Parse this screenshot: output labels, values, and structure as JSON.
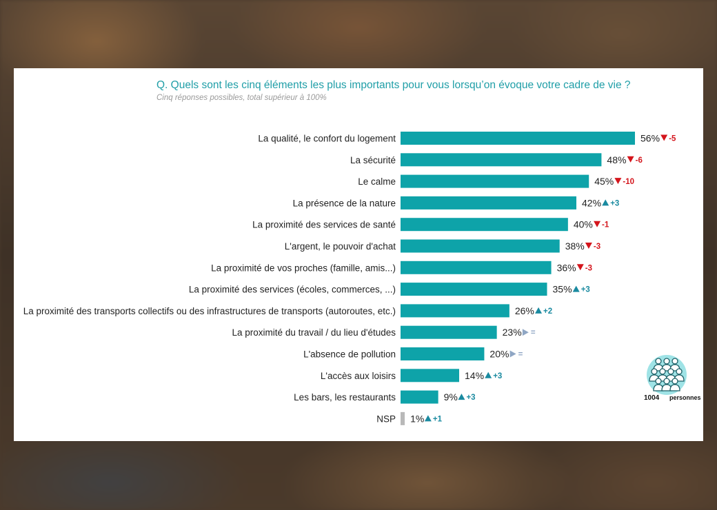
{
  "chart_data": {
    "type": "bar",
    "orientation": "horizontal",
    "title": "Q. Quels sont les cinq éléments les plus importants pour vous lorsqu’on évoque votre cadre de vie ?",
    "subtitle": "Cinq réponses possibles, total supérieur à 100%",
    "xlim": [
      0,
      56
    ],
    "grid": false,
    "colors": {
      "bar": "#0ea3a9",
      "nsp_bar": "#b9b9b9",
      "down": "#d4151c",
      "up": "#1a8aa0",
      "equal": "#8fa6c4"
    },
    "categories": [
      "La qualité, le confort du logement",
      "La sécurité",
      "Le calme",
      "La présence de la nature",
      "La proximité des services de santé",
      "L'argent, le pouvoir d'achat",
      "La proximité de vos proches (famille, amis...)",
      "La proximité des services (écoles, commerces, ...)",
      "La proximité des transports collectifs ou des infrastructures de transports (autoroutes, etc.)",
      "La proximité du travail / du lieu d'études",
      "L'absence de pollution",
      "L'accès aux loisirs",
      "Les bars, les restaurants",
      "NSP"
    ],
    "values": [
      56,
      48,
      45,
      42,
      40,
      38,
      36,
      35,
      26,
      23,
      20,
      14,
      9,
      1
    ],
    "value_labels": [
      "56%",
      "48%",
      "45%",
      "42%",
      "40%",
      "38%",
      "36%",
      "35%",
      "26%",
      "23%",
      "20%",
      "14%",
      "9%",
      "1%"
    ],
    "changes": [
      {
        "direction": "down",
        "label": "-5"
      },
      {
        "direction": "down",
        "label": "-6"
      },
      {
        "direction": "down",
        "label": "-10"
      },
      {
        "direction": "up",
        "label": "+3"
      },
      {
        "direction": "down",
        "label": "-1"
      },
      {
        "direction": "down",
        "label": "-3"
      },
      {
        "direction": "down",
        "label": "-3"
      },
      {
        "direction": "up",
        "label": "+3"
      },
      {
        "direction": "up",
        "label": "+2"
      },
      {
        "direction": "equal",
        "label": "="
      },
      {
        "direction": "equal",
        "label": "="
      },
      {
        "direction": "up",
        "label": "+3"
      },
      {
        "direction": "up",
        "label": "+3"
      },
      {
        "direction": "up",
        "label": "+1"
      }
    ]
  },
  "sample": {
    "count": "1004",
    "unit": "personnes",
    "icon": "people-group-icon"
  }
}
